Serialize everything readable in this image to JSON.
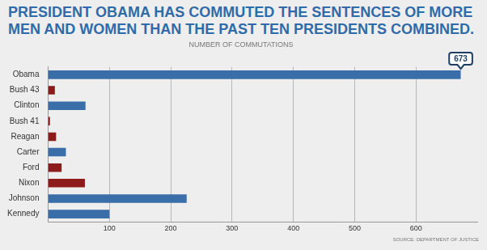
{
  "chart_data": {
    "type": "bar",
    "orientation": "horizontal",
    "title": "PRESIDENT OBAMA HAS COMMUTED THE SENTENCES OF MORE MEN AND WOMEN THAN THE PAST TEN PRESIDENTS COMBINED.",
    "subtitle": "NUMBER OF COMMUTATIONS",
    "source": "SOURCE: DEPARTMENT OF JUSTICE",
    "categories": [
      "Obama",
      "Bush 43",
      "Clinton",
      "Bush 41",
      "Reagan",
      "Carter",
      "Ford",
      "Nixon",
      "Johnson",
      "Kennedy"
    ],
    "values": [
      673,
      11,
      61,
      3,
      13,
      29,
      22,
      60,
      226,
      100
    ],
    "colors": [
      "#3a6ea8",
      "#8e1b1b",
      "#3a6ea8",
      "#8e1b1b",
      "#8e1b1b",
      "#3a6ea8",
      "#8e1b1b",
      "#8e1b1b",
      "#3a6ea8",
      "#3a6ea8"
    ],
    "xlim": [
      0,
      700
    ],
    "xticks": [
      100,
      200,
      300,
      400,
      500,
      600
    ],
    "grid": true,
    "annotations": [
      {
        "text": "673",
        "category": "Obama"
      }
    ]
  }
}
